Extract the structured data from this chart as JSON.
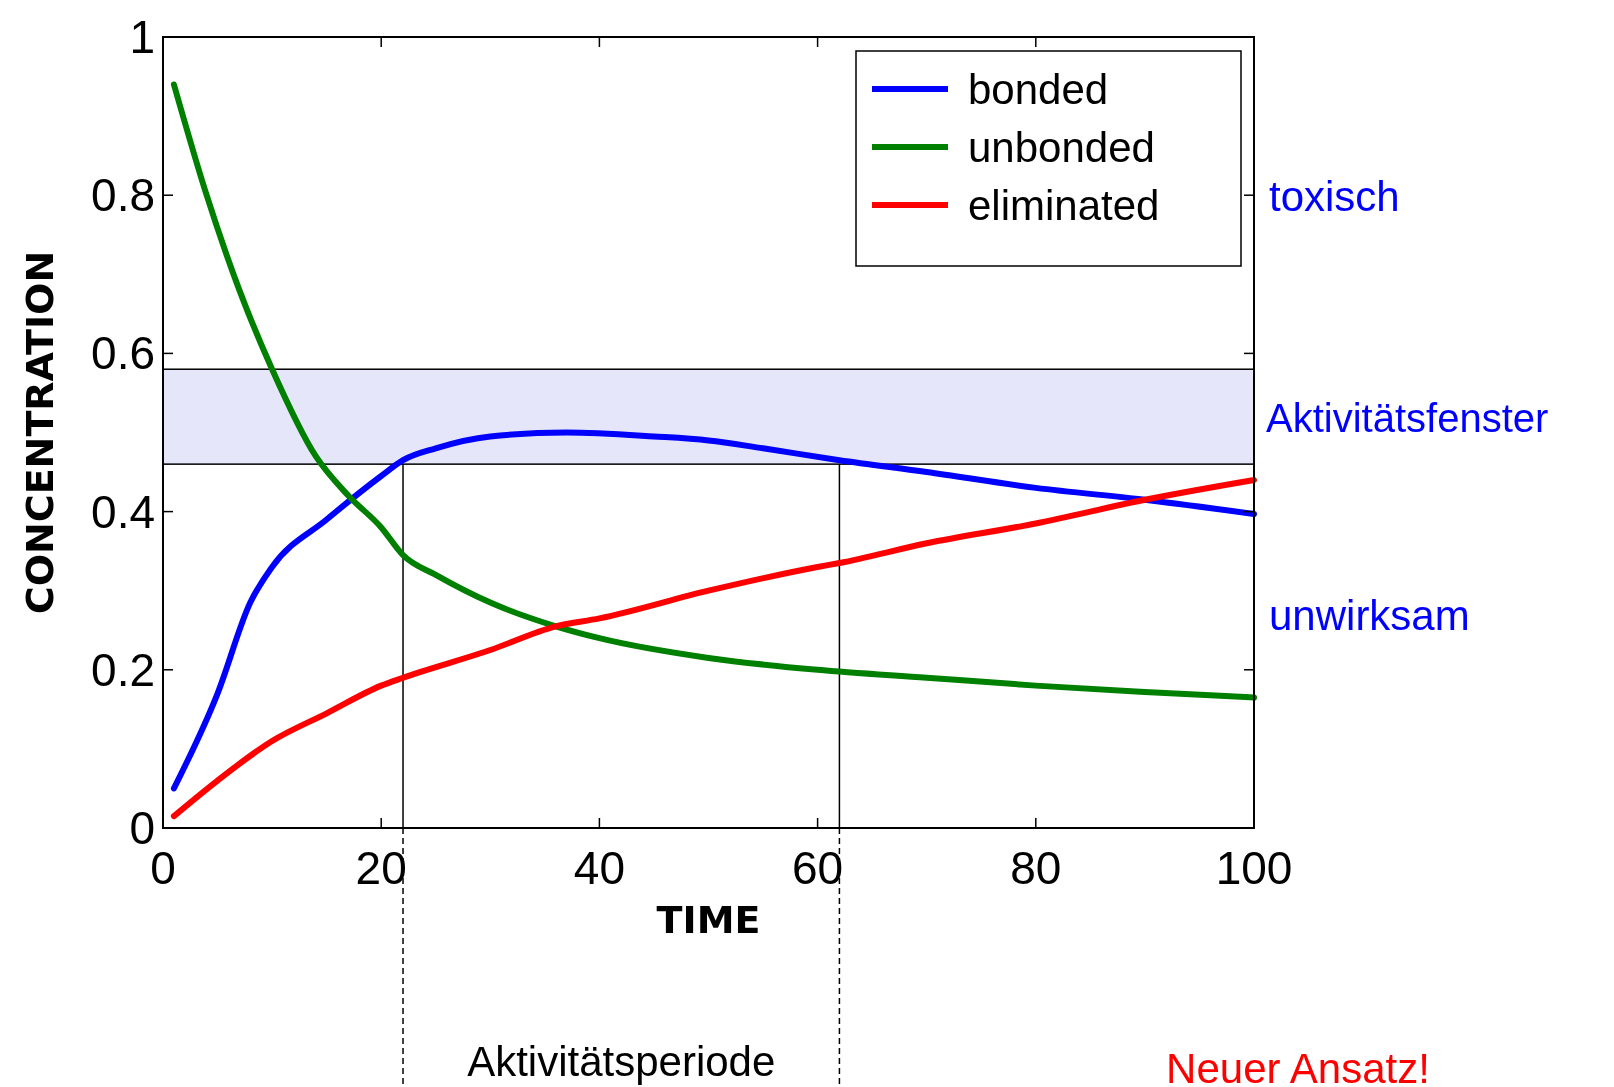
{
  "chart_data": {
    "type": "line",
    "xlabel": "TIME",
    "ylabel": "CONCENTRATION",
    "xlim": [
      0,
      100
    ],
    "ylim": [
      0,
      1
    ],
    "xticks": [
      0,
      20,
      40,
      60,
      80,
      100
    ],
    "yticks": [
      0,
      0.2,
      0.4,
      0.6,
      0.8,
      1
    ],
    "legend": "top right",
    "grid": false,
    "line_style": "solid",
    "x": [
      1,
      5,
      8,
      10,
      15,
      20,
      22,
      25,
      30,
      37,
      45,
      50,
      55,
      62,
      70,
      80,
      90,
      100
    ],
    "series": [
      {
        "name": "bonded",
        "color": "#0000ff",
        "values": [
          0.05,
          0.17,
          0.285,
          0.33,
          0.39,
          0.445,
          0.465,
          0.48,
          0.495,
          0.5,
          0.495,
          0.49,
          0.48,
          0.465,
          0.45,
          0.43,
          0.415,
          0.397
        ]
      },
      {
        "name": "unbonded",
        "color": "#008000",
        "x": [
          1,
          4,
          7,
          10,
          14,
          17,
          20,
          22,
          25,
          30,
          36,
          40,
          50,
          60,
          70,
          80,
          90,
          100
        ],
        "values": [
          0.94,
          0.8,
          0.68,
          0.58,
          0.47,
          0.42,
          0.38,
          0.345,
          0.32,
          0.285,
          0.255,
          0.24,
          0.215,
          0.2,
          0.19,
          0.18,
          0.172,
          0.165
        ]
      },
      {
        "name": "eliminated",
        "color": "#ff0000",
        "x": [
          1,
          5,
          10,
          15,
          20,
          22,
          30,
          36,
          40,
          50,
          60,
          62,
          70,
          80,
          90,
          100
        ],
        "values": [
          0.015,
          0.06,
          0.11,
          0.145,
          0.18,
          0.19,
          0.225,
          0.255,
          0.265,
          0.3,
          0.33,
          0.335,
          0.36,
          0.385,
          0.415,
          0.44
        ]
      }
    ],
    "bands": [
      {
        "axis": "y",
        "from": 0.46,
        "to": 0.58,
        "label": "Aktivitätsfenster",
        "color": "#e6e6fa"
      }
    ],
    "ref_lines": [
      {
        "axis": "x",
        "value": 22,
        "label": null
      },
      {
        "axis": "x",
        "value": 62,
        "label": null
      }
    ],
    "annotations": [
      "toxisch",
      "unwirksam",
      "Aktivitätsperiode",
      "Neuer Ansatz!"
    ]
  }
}
